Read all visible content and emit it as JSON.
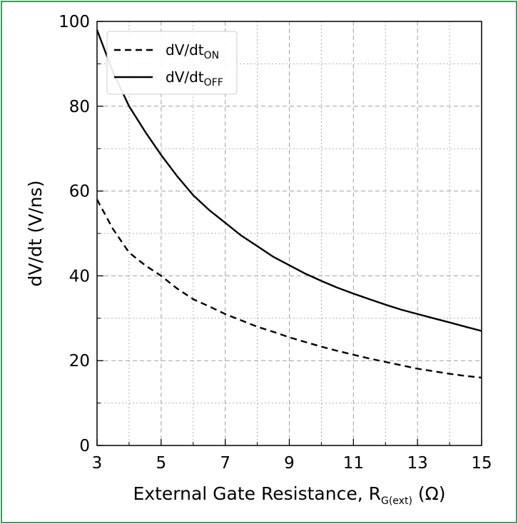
{
  "frame_color": "#3d9a5a",
  "chart_data": {
    "type": "line",
    "xlabel": "External Gate Resistance, R",
    "xlabel_sub": "G(ext)",
    "xlabel_suffix": " (Ω)",
    "ylabel": "dV/dt (V/ns)",
    "xlim": [
      3,
      15
    ],
    "ylim": [
      0,
      100
    ],
    "xticks": [
      3,
      5,
      7,
      9,
      11,
      13,
      15
    ],
    "yticks": [
      0,
      20,
      40,
      60,
      80,
      100
    ],
    "x_minor_step": 1,
    "y_minor_step": 10,
    "grid": true,
    "legend_position": "top-left",
    "series": [
      {
        "name": "dV/dt",
        "name_sub": "ON",
        "style": "dashed",
        "color": "#000000",
        "x": [
          3,
          3.5,
          4,
          4.5,
          5,
          5.5,
          6,
          6.5,
          7,
          7.5,
          8,
          8.5,
          9,
          9.5,
          10,
          10.5,
          11,
          11.5,
          12,
          12.5,
          13,
          13.5,
          14,
          14.5,
          15
        ],
        "y": [
          58,
          51,
          45.5,
          42.5,
          40,
          37,
          34.5,
          32.8,
          31,
          29.5,
          28,
          26.8,
          25.5,
          24.4,
          23.3,
          22.3,
          21.4,
          20.5,
          19.7,
          18.9,
          18.1,
          17.5,
          16.9,
          16.4,
          16
        ]
      },
      {
        "name": "dV/dt",
        "name_sub": "OFF",
        "style": "solid",
        "color": "#000000",
        "x": [
          3,
          3.5,
          4,
          4.5,
          5,
          5.5,
          6,
          6.5,
          7,
          7.5,
          8,
          8.5,
          9,
          9.5,
          10,
          10.5,
          11,
          11.5,
          12,
          12.5,
          13,
          13.5,
          14,
          14.5,
          15
        ],
        "y": [
          98,
          88,
          80,
          74,
          68.5,
          63.5,
          59,
          55.5,
          52.5,
          49.5,
          47,
          44.5,
          42.5,
          40.5,
          38.8,
          37.2,
          35.8,
          34.5,
          33.2,
          32,
          31,
          30,
          29,
          28,
          27
        ]
      }
    ]
  }
}
